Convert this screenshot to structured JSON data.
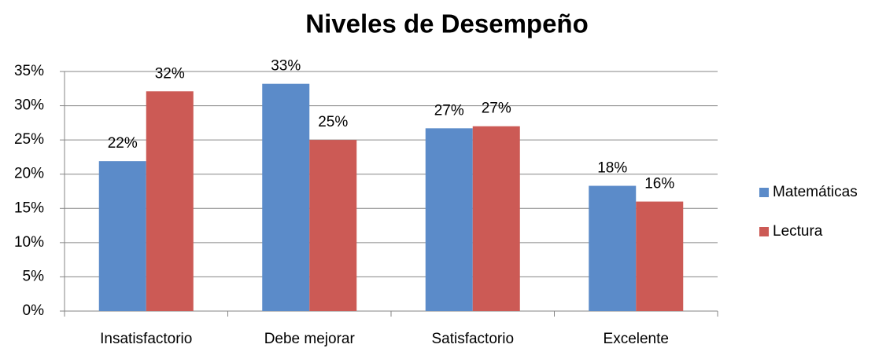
{
  "chart_data": {
    "type": "bar",
    "title": "Niveles de Desempeño",
    "categories": [
      "Insatisfactorio",
      "Debe mejorar",
      "Satisfactorio",
      "Excelente"
    ],
    "series": [
      {
        "name": "Matemáticas",
        "color": "#5b8bc9",
        "values": [
          21.9,
          33.2,
          26.7,
          18.3
        ],
        "value_labels": [
          "22%",
          "33%",
          "27%",
          "18%"
        ]
      },
      {
        "name": "Lectura",
        "color": "#cc5a55",
        "values": [
          32.1,
          25.0,
          27.0,
          16.0
        ],
        "value_labels": [
          "32%",
          "25%",
          "27%",
          "16%"
        ]
      }
    ],
    "ylim": [
      0,
      35
    ],
    "yticks": [
      {
        "value": 0,
        "label": "0%"
      },
      {
        "value": 5,
        "label": "5%"
      },
      {
        "value": 10,
        "label": "10%"
      },
      {
        "value": 15,
        "label": "15%"
      },
      {
        "value": 20,
        "label": "20%"
      },
      {
        "value": 25,
        "label": "25%"
      },
      {
        "value": 30,
        "label": "30%"
      },
      {
        "value": 35,
        "label": "35%"
      }
    ],
    "grid": true,
    "legend": "right"
  }
}
